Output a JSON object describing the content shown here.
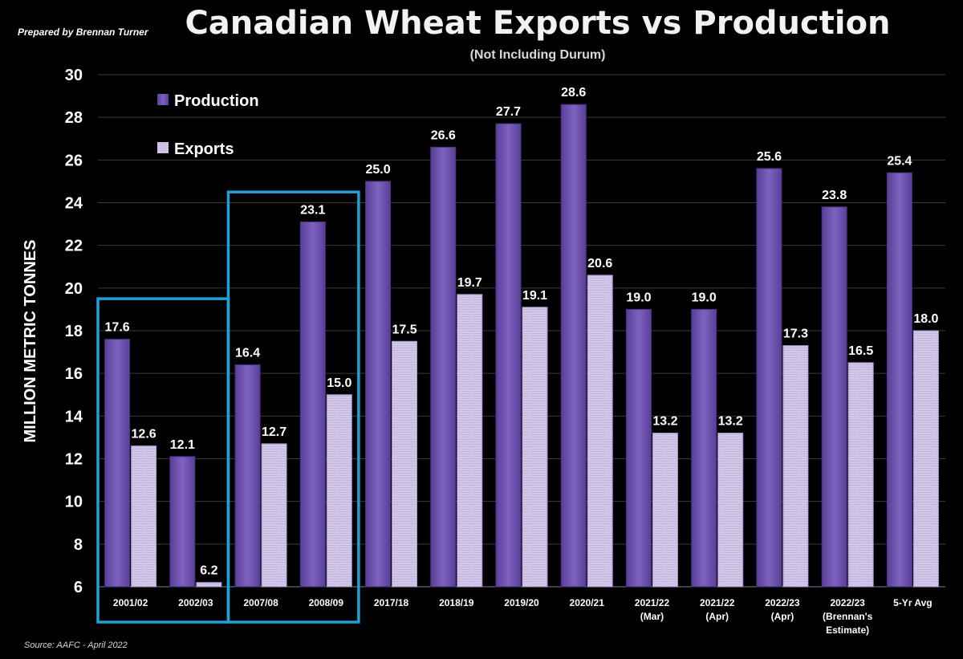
{
  "header": {
    "prepared_by": "Prepared by Brennan Turner",
    "title": "Canadian Wheat Exports vs Production",
    "subtitle": "(Not Including Durum)"
  },
  "footer": {
    "source": "Source: AAFC -  April 2022"
  },
  "colors": {
    "background": "#000000",
    "production": "#6e52ad",
    "exports": "#ddd2ee",
    "highlight_box": "#1ea0d8",
    "gridline": "#3a3a3a"
  },
  "chart_data": {
    "type": "bar",
    "title": "Canadian Wheat Exports vs Production",
    "subtitle": "(Not Including Durum)",
    "xlabel": "",
    "ylabel": "MILLION METRIC TONNES",
    "ylim": [
      6,
      30
    ],
    "yticks": [
      6,
      8,
      10,
      12,
      14,
      16,
      18,
      20,
      22,
      24,
      26,
      28,
      30
    ],
    "grid": true,
    "legend_position": "top-left",
    "categories": [
      [
        "2001/02"
      ],
      [
        "2002/03"
      ],
      [
        "2007/08"
      ],
      [
        "2008/09"
      ],
      [
        "2017/18"
      ],
      [
        "2018/19"
      ],
      [
        "2019/20"
      ],
      [
        "2020/21"
      ],
      [
        "2021/22",
        "(Mar)"
      ],
      [
        "2021/22",
        "(Apr)"
      ],
      [
        "2022/23",
        "(Apr)"
      ],
      [
        "2022/23",
        "(Brennan's",
        "Estimate)"
      ],
      [
        "5-Yr Avg"
      ]
    ],
    "series": [
      {
        "name": "Production",
        "color": "#6e52ad",
        "values": [
          17.6,
          12.1,
          16.4,
          23.1,
          25.0,
          26.6,
          27.7,
          28.6,
          19.0,
          19.0,
          25.6,
          23.8,
          25.4
        ]
      },
      {
        "name": "Exports",
        "color": "#ddd2ee",
        "values": [
          12.6,
          6.2,
          12.7,
          15.0,
          17.5,
          19.7,
          19.1,
          20.6,
          13.2,
          13.2,
          17.3,
          16.5,
          18.0
        ]
      }
    ],
    "highlight_groups": [
      [
        0,
        1
      ],
      [
        2,
        3
      ]
    ]
  }
}
